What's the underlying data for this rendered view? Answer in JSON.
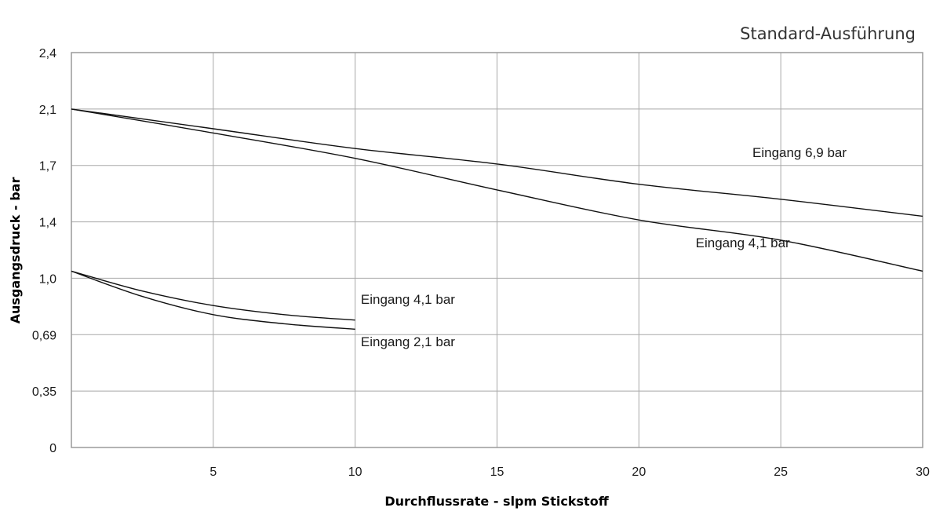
{
  "chart_data": {
    "type": "line",
    "subtitle": "Standard-Ausführung",
    "xlabel": "Durchflussrate - slpm Stickstoff",
    "ylabel": "Ausgangsdruck - bar",
    "xlim": [
      0,
      30
    ],
    "ylim": [
      0,
      2.4
    ],
    "grid": true,
    "x_ticks": [
      {
        "value": 5,
        "label": "5"
      },
      {
        "value": 10,
        "label": "10"
      },
      {
        "value": 15,
        "label": "15"
      },
      {
        "value": 20,
        "label": "20"
      },
      {
        "value": 25,
        "label": "25"
      },
      {
        "value": 30,
        "label": "30"
      }
    ],
    "y_ticks": [
      {
        "value": 0,
        "label": "0"
      },
      {
        "value": 0.35,
        "label": "0,35"
      },
      {
        "value": 0.69,
        "label": "0,69"
      },
      {
        "value": 1.0,
        "label": "1,0"
      },
      {
        "value": 1.4,
        "label": "1,4"
      },
      {
        "value": 1.7,
        "label": "1,7"
      },
      {
        "value": 2.1,
        "label": "2,1"
      },
      {
        "value": 2.4,
        "label": "2,4"
      }
    ],
    "series": [
      {
        "name": "Eingang 6,9 bar",
        "label_at": [
          24,
          1.76
        ],
        "points": [
          [
            0,
            2.1
          ],
          [
            5,
            1.96
          ],
          [
            10,
            1.82
          ],
          [
            15,
            1.71
          ],
          [
            20,
            1.6
          ],
          [
            25,
            1.52
          ],
          [
            30,
            1.43
          ]
        ]
      },
      {
        "name": "Eingang 4,1 bar",
        "label_at": [
          22,
          1.22
        ],
        "points": [
          [
            0,
            2.1
          ],
          [
            5,
            1.93
          ],
          [
            10,
            1.75
          ],
          [
            15,
            1.57
          ],
          [
            20,
            1.41
          ],
          [
            25,
            1.27
          ],
          [
            30,
            1.05
          ]
        ]
      },
      {
        "name": "Eingang 4,1 bar",
        "label_at": [
          10.2,
          0.86
        ],
        "points": [
          [
            0,
            1.05
          ],
          [
            2.5,
            0.93
          ],
          [
            5,
            0.85
          ],
          [
            7.5,
            0.8
          ],
          [
            10,
            0.77
          ]
        ]
      },
      {
        "name": "Eingang 2,1 bar",
        "label_at": [
          10.2,
          0.62
        ],
        "points": [
          [
            0,
            1.05
          ],
          [
            2.5,
            0.9
          ],
          [
            5,
            0.8
          ],
          [
            7.5,
            0.75
          ],
          [
            10,
            0.72
          ]
        ]
      }
    ]
  }
}
